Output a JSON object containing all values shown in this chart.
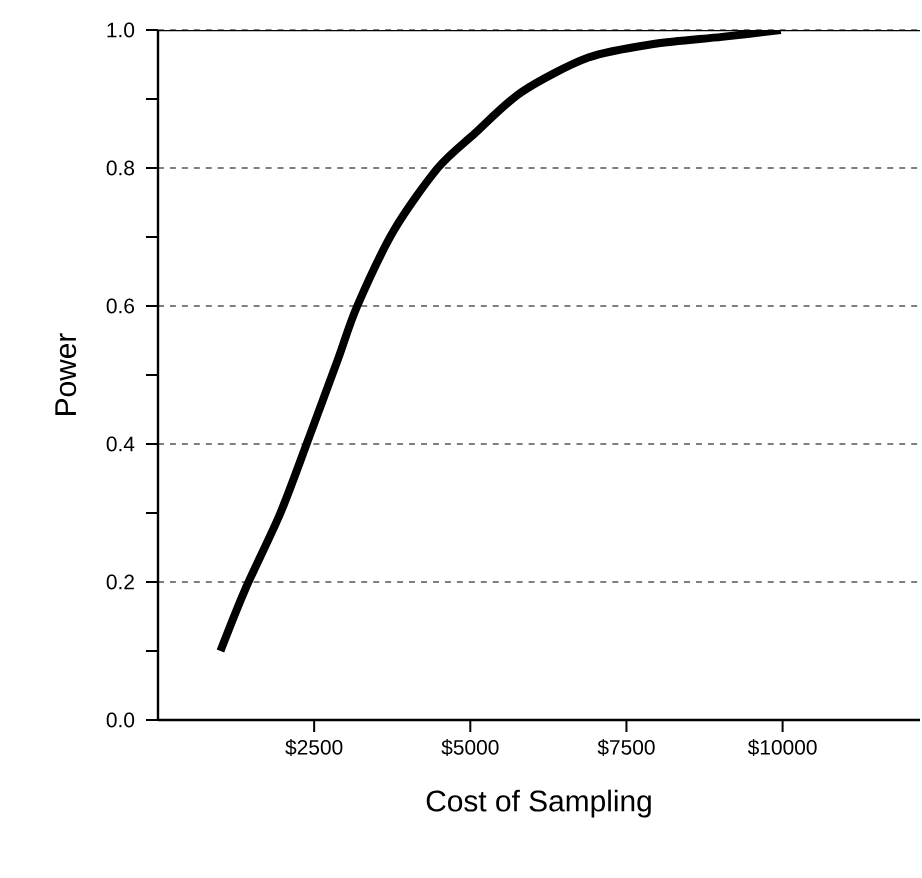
{
  "chart_data": {
    "type": "line",
    "xlabel": "Cost of Sampling",
    "ylabel": "Power",
    "x": [
      1000,
      1400,
      1960,
      2420,
      2870,
      3190,
      3780,
      4480,
      5070,
      5820,
      6890,
      7960,
      9030,
      9970
    ],
    "series": [
      {
        "color": "#000000",
        "line_style": "solid",
        "values": [
          0.1,
          0.19,
          0.3,
          0.41,
          0.52,
          0.6,
          0.71,
          0.8,
          0.85,
          0.91,
          0.96,
          0.98,
          0.99,
          1.0
        ]
      }
    ],
    "xlim": [
      0,
      12200
    ],
    "ylim": [
      0,
      1
    ],
    "xticks": [
      {
        "value": 2500,
        "label": "$2500"
      },
      {
        "value": 5000,
        "label": "$5000"
      },
      {
        "value": 7500,
        "label": "$7500"
      },
      {
        "value": 10000,
        "label": "$10000"
      }
    ],
    "yticks": [
      {
        "value": 0,
        "label": "0.0"
      },
      {
        "value": 0.1,
        "label": null
      },
      {
        "value": 0.2,
        "label": "0.2"
      },
      {
        "value": 0.3,
        "label": null
      },
      {
        "value": 0.4,
        "label": "0.4"
      },
      {
        "value": 0.5,
        "label": null
      },
      {
        "value": 0.6,
        "label": "0.6"
      },
      {
        "value": 0.7,
        "label": null
      },
      {
        "value": 0.8,
        "label": "0.8"
      },
      {
        "value": 0.9,
        "label": null
      },
      {
        "value": 1.0,
        "label": "1.0"
      }
    ],
    "grid": "y"
  }
}
